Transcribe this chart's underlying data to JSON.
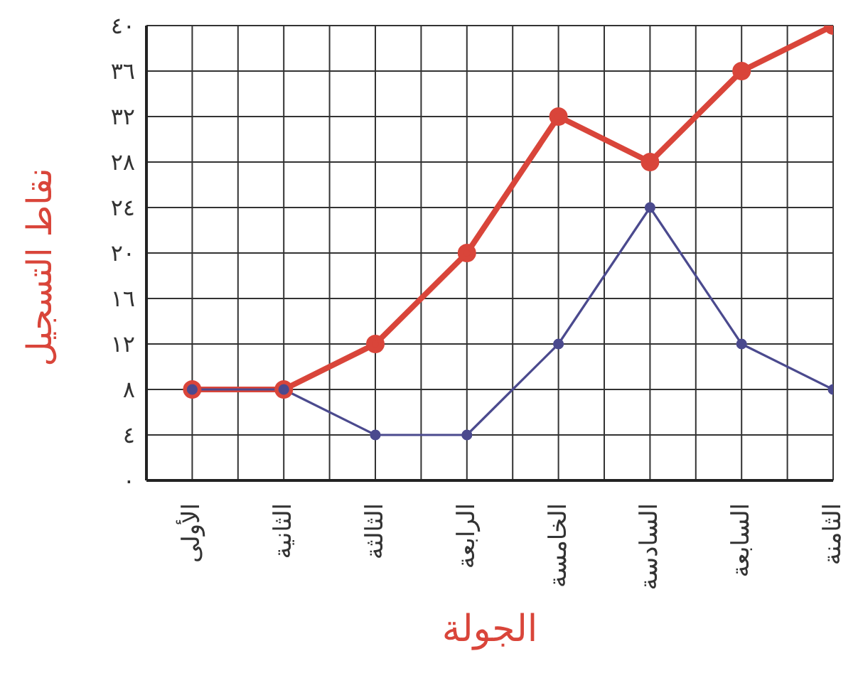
{
  "chart_data": {
    "type": "line",
    "xlabel": "الجولة",
    "ylabel": "نقاط التسجيل",
    "categories": [
      "الأولى",
      "الثانية",
      "الثالثة",
      "الرابعة",
      "الخامسة",
      "السادسة",
      "السابعة",
      "الثامنة"
    ],
    "series": [
      {
        "color": "#d9453a",
        "values": [
          8,
          8,
          12,
          20,
          32,
          28,
          36,
          40
        ]
      },
      {
        "color": "#4b4a8e",
        "values": [
          8,
          8,
          4,
          4,
          12,
          24,
          12,
          8
        ]
      }
    ],
    "ylim": [
      0,
      40
    ],
    "yticks": [
      {
        "value": 0,
        "label": "٠"
      },
      {
        "value": 4,
        "label": "٤"
      },
      {
        "value": 8,
        "label": "٨"
      },
      {
        "value": 12,
        "label": "١٢"
      },
      {
        "value": 16,
        "label": "١٦"
      },
      {
        "value": 20,
        "label": "٢٠"
      },
      {
        "value": 24,
        "label": "٢٤"
      },
      {
        "value": 28,
        "label": "٢٨"
      },
      {
        "value": 32,
        "label": "٣٢"
      },
      {
        "value": 36,
        "label": "٣٦"
      },
      {
        "value": 40,
        "label": "٤٠"
      }
    ],
    "grid": true,
    "legend": false,
    "marker": "circle",
    "line_style": "solid"
  }
}
